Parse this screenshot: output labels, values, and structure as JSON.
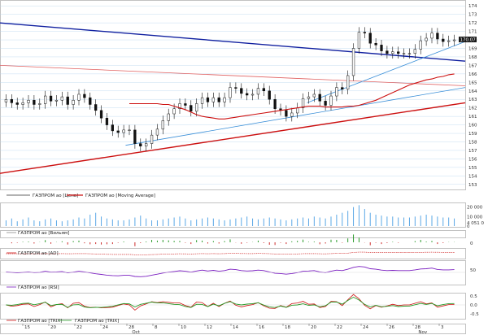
{
  "chart_data": {
    "type": "candlestick",
    "instrument": "ГАЗПРОМ ао",
    "x_axis": {
      "ticks": [
        "15",
        "20",
        "22",
        "24",
        "28",
        "Oct",
        "8",
        "10",
        "12",
        "14",
        "16",
        "18",
        "20",
        "22",
        "24",
        "26",
        "28",
        "Nov",
        "3"
      ],
      "month_labels": [
        "Oct",
        "Nov"
      ]
    },
    "price_panel": {
      "legend": [
        "ГАЗПРОМ ао [Цена]",
        "ГАЗПРОМ ао [Moving Average]"
      ],
      "y_ticks": [
        174,
        173,
        172,
        171,
        170,
        169,
        168,
        167,
        166,
        165,
        164,
        163,
        162,
        161,
        160,
        159,
        158,
        157,
        156,
        155,
        154,
        153
      ],
      "ylim": [
        152.5,
        174.5
      ],
      "last_price": "170.07",
      "closes": [
        163.0,
        162.6,
        162.4,
        162.6,
        162.9,
        162.4,
        162.5,
        163.4,
        162.8,
        162.9,
        163.3,
        162.4,
        162.9,
        163.6,
        163.2,
        162.4,
        161.7,
        160.8,
        160.0,
        159.3,
        159.1,
        159.4,
        159.4,
        157.8,
        157.5,
        157.8,
        158.8,
        159.5,
        160.5,
        161.3,
        161.9,
        162.5,
        162.3,
        161.6,
        162.5,
        163.2,
        162.7,
        163.2,
        162.7,
        163.2,
        164.4,
        164.3,
        163.7,
        163.5,
        163.6,
        164.3,
        164.0,
        163.0,
        161.9,
        161.7,
        161.0,
        161.4,
        162.0,
        163.1,
        163.3,
        163.6,
        162.8,
        162.3,
        163.4,
        164.4,
        164.2,
        165.8,
        169.0,
        170.9,
        170.8,
        169.6,
        169.4,
        168.7,
        168.4,
        168.6,
        168.4,
        168.4,
        168.4,
        168.9,
        169.9,
        170.2,
        170.8,
        170.1,
        169.8,
        169.9,
        170.0
      ],
      "moving_average": [
        162.5,
        162.5,
        162.5,
        162.5,
        162.5,
        162.5,
        162.4,
        162.4,
        162.2,
        162.0,
        161.8,
        161.5,
        161.2,
        161.0,
        160.9,
        160.8,
        160.7,
        160.7,
        160.8,
        160.9,
        161.0,
        161.1,
        161.2,
        161.3,
        161.4,
        161.5,
        161.6,
        161.7,
        161.8,
        161.9,
        162.0,
        162.1,
        162.2,
        162.2,
        162.2,
        162.1,
        162.1,
        162.1,
        162.1,
        162.2,
        162.2,
        162.3,
        162.5,
        162.7,
        162.9,
        163.2,
        163.5,
        163.8,
        164.1,
        164.4,
        164.7,
        164.9,
        165.1,
        165.3,
        165.4,
        165.6,
        165.7,
        165.9,
        166.0
      ],
      "trend_lines": [
        {
          "color": "#1020a0",
          "from": [
            0,
            172.0
          ],
          "to": [
            100,
            167.5
          ]
        },
        {
          "color": "#cc1010",
          "from": [
            0,
            154.3
          ],
          "to": [
            100,
            162.6
          ]
        },
        {
          "color": "#e06060",
          "from": [
            0,
            167.0
          ],
          "to": [
            100,
            164.6
          ]
        },
        {
          "color": "#3a8fd8",
          "from": [
            27,
            157.6
          ],
          "to": [
            100,
            164.4
          ]
        },
        {
          "color": "#3a8fd8",
          "from": [
            66,
            162.6
          ],
          "to": [
            100,
            169.8
          ]
        }
      ]
    },
    "volume_panel": {
      "y_ticks": [
        "20 000",
        "10 000",
        "0"
      ],
      "last_value": "4 051 0",
      "values": [
        6,
        8,
        5,
        7,
        9,
        6,
        5,
        7,
        8,
        6,
        5,
        6,
        7,
        9,
        8,
        12,
        14,
        10,
        8,
        7,
        6,
        6,
        7,
        9,
        11,
        8,
        6,
        6,
        7,
        8,
        9,
        10,
        8,
        6,
        7,
        8,
        9,
        8,
        7,
        6,
        7,
        8,
        9,
        10,
        8,
        7,
        8,
        9,
        8,
        7,
        6,
        7,
        8,
        9,
        8,
        10,
        9,
        8,
        10,
        12,
        14,
        16,
        20,
        22,
        18,
        14,
        12,
        11,
        10,
        10,
        9,
        9,
        9,
        10,
        11,
        12,
        11,
        10,
        9,
        9,
        8
      ]
    },
    "williams_panel": {
      "legend": "ГАЗПРОМ ао [Вильям]",
      "y_ticks": [
        "0"
      ]
    },
    "ad_panel": {
      "legend": "ГАЗПРОМ ао [AD]",
      "y_ticks": []
    },
    "rsi_panel": {
      "legend": "ГАЗПРОМ ао [RSI]",
      "y_ticks": [
        "50"
      ],
      "values": [
        52,
        50,
        48,
        50,
        52,
        49,
        50,
        55,
        51,
        52,
        54,
        48,
        51,
        55,
        52,
        48,
        44,
        41,
        38,
        36,
        35,
        37,
        37,
        32,
        31,
        33,
        38,
        42,
        47,
        51,
        54,
        57,
        55,
        51,
        56,
        60,
        56,
        59,
        55,
        58,
        64,
        62,
        58,
        56,
        57,
        60,
        58,
        52,
        46,
        45,
        42,
        45,
        49,
        55,
        56,
        58,
        52,
        49,
        55,
        60,
        58,
        64,
        72,
        76,
        74,
        66,
        64,
        60,
        58,
        59,
        58,
        58,
        58,
        61,
        65,
        66,
        69,
        63,
        61,
        61,
        62
      ]
    },
    "trix_panel": {
      "legend": [
        "ГАЗПРОМ ао [TRIX]",
        "ГАЗПРОМ ао [TRIX]"
      ],
      "y_ticks": [
        "0.5",
        "0.0",
        "-0.5"
      ]
    }
  }
}
